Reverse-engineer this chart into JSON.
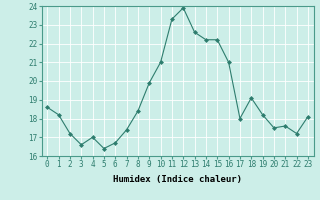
{
  "x": [
    0,
    1,
    2,
    3,
    4,
    5,
    6,
    7,
    8,
    9,
    10,
    11,
    12,
    13,
    14,
    15,
    16,
    17,
    18,
    19,
    20,
    21,
    22,
    23
  ],
  "y": [
    18.6,
    18.2,
    17.2,
    16.6,
    17.0,
    16.4,
    16.7,
    17.4,
    18.4,
    19.9,
    21.0,
    23.3,
    23.9,
    22.6,
    22.2,
    22.2,
    21.0,
    18.0,
    19.1,
    18.2,
    17.5,
    17.6,
    17.2,
    18.1
  ],
  "line_color": "#2e7d6e",
  "marker": "D",
  "marker_size": 2.0,
  "bg_color": "#cceee8",
  "grid_color": "#ffffff",
  "xlabel": "Humidex (Indice chaleur)",
  "ylim": [
    16,
    24
  ],
  "xlim": [
    -0.5,
    23.5
  ],
  "yticks": [
    16,
    17,
    18,
    19,
    20,
    21,
    22,
    23,
    24
  ],
  "xticks": [
    0,
    1,
    2,
    3,
    4,
    5,
    6,
    7,
    8,
    9,
    10,
    11,
    12,
    13,
    14,
    15,
    16,
    17,
    18,
    19,
    20,
    21,
    22,
    23
  ],
  "tick_fontsize": 5.5,
  "label_fontsize": 6.5
}
